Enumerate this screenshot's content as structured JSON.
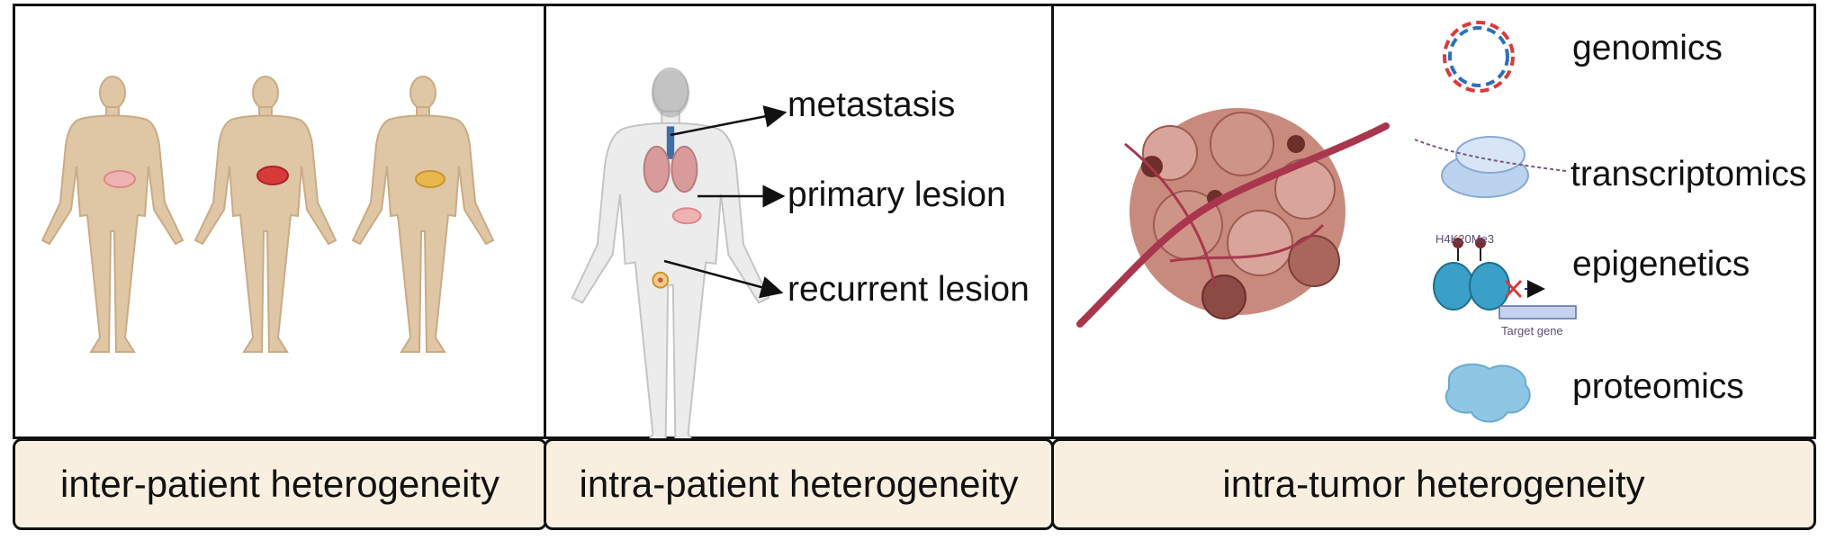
{
  "panels": {
    "inter": {
      "caption": "inter-patient heterogeneity"
    },
    "intra": {
      "caption": "intra-patient heterogeneity",
      "labels": [
        "metastasis",
        "primary lesion",
        "recurrent lesion"
      ]
    },
    "tumor": {
      "caption": "intra-tumor heterogeneity",
      "omics": [
        "genomics",
        "transcriptomics",
        "epigenetics",
        "proteomics"
      ],
      "epigenetics_mark": "H4K20Me3",
      "target_gene": "Target gene"
    }
  },
  "colors": {
    "skin": "#dfc6a4",
    "skin_edge": "#c9ab86",
    "caption_bg": "#f9efe1",
    "organ_pink": "#f0b3b3",
    "organ_red": "#d83a3a",
    "organ_yellow": "#e8b84e",
    "vessel": "#a8374d",
    "tumor": "#c98a7e",
    "histone": "#3aa0c8",
    "protein": "#8fc6e4"
  }
}
